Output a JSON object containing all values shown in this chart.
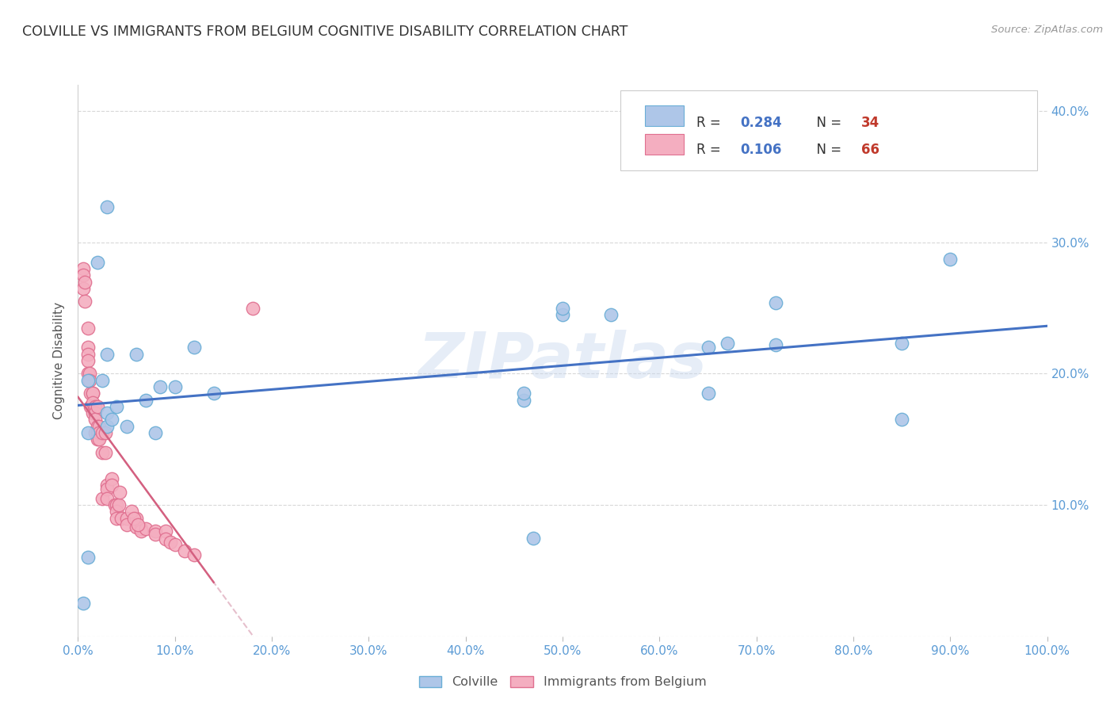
{
  "title": "COLVILLE VS IMMIGRANTS FROM BELGIUM COGNITIVE DISABILITY CORRELATION CHART",
  "source": "Source: ZipAtlas.com",
  "ylabel": "Cognitive Disability",
  "xlim": [
    0,
    1.0
  ],
  "ylim": [
    0,
    0.42
  ],
  "xticks": [
    0.0,
    0.1,
    0.2,
    0.3,
    0.4,
    0.5,
    0.6,
    0.7,
    0.8,
    0.9,
    1.0
  ],
  "xticklabels": [
    "0.0%",
    "10.0%",
    "20.0%",
    "30.0%",
    "40.0%",
    "50.0%",
    "60.0%",
    "70.0%",
    "80.0%",
    "90.0%",
    "100.0%"
  ],
  "yticks": [
    0.0,
    0.1,
    0.2,
    0.3,
    0.4
  ],
  "yticklabels_right": [
    "",
    "10.0%",
    "20.0%",
    "30.0%",
    "40.0%"
  ],
  "colville_color": "#aec6e8",
  "colville_edge": "#6aaed6",
  "belgium_color": "#f4aec0",
  "belgium_edge": "#e07090",
  "colville_R": 0.284,
  "colville_N": 34,
  "belgium_R": 0.106,
  "belgium_N": 66,
  "colville_line_color": "#4472c4",
  "belgium_line_color": "#d46080",
  "belgium_dashed_color": "#e0b0c0",
  "watermark": "ZIPatlas",
  "colville_x": [
    0.005,
    0.02,
    0.025,
    0.03,
    0.03,
    0.03,
    0.03,
    0.035,
    0.04,
    0.05,
    0.06,
    0.07,
    0.085,
    0.1,
    0.12,
    0.14,
    0.46,
    0.47,
    0.5,
    0.5,
    0.55,
    0.65,
    0.65,
    0.67,
    0.72,
    0.72,
    0.85,
    0.85,
    0.9,
    0.01,
    0.01,
    0.01,
    0.08,
    0.46
  ],
  "colville_y": [
    0.025,
    0.285,
    0.195,
    0.215,
    0.17,
    0.16,
    0.327,
    0.165,
    0.175,
    0.16,
    0.215,
    0.18,
    0.19,
    0.19,
    0.22,
    0.185,
    0.18,
    0.075,
    0.245,
    0.25,
    0.245,
    0.185,
    0.22,
    0.223,
    0.222,
    0.254,
    0.165,
    0.223,
    0.287,
    0.195,
    0.155,
    0.06,
    0.155,
    0.185
  ],
  "belgium_x": [
    0.005,
    0.005,
    0.005,
    0.007,
    0.007,
    0.01,
    0.01,
    0.01,
    0.01,
    0.01,
    0.012,
    0.012,
    0.013,
    0.013,
    0.015,
    0.015,
    0.015,
    0.015,
    0.018,
    0.018,
    0.018,
    0.018,
    0.02,
    0.02,
    0.02,
    0.02,
    0.02,
    0.022,
    0.022,
    0.022,
    0.025,
    0.025,
    0.025,
    0.028,
    0.028,
    0.03,
    0.03,
    0.03,
    0.035,
    0.035,
    0.038,
    0.04,
    0.04,
    0.04,
    0.042,
    0.043,
    0.045,
    0.05,
    0.05,
    0.06,
    0.06,
    0.065,
    0.065,
    0.07,
    0.08,
    0.08,
    0.09,
    0.09,
    0.095,
    0.1,
    0.11,
    0.12,
    0.18,
    0.055,
    0.058,
    0.062
  ],
  "belgium_y": [
    0.28,
    0.275,
    0.265,
    0.27,
    0.255,
    0.235,
    0.22,
    0.215,
    0.21,
    0.2,
    0.2,
    0.195,
    0.185,
    0.175,
    0.185,
    0.185,
    0.178,
    0.17,
    0.175,
    0.17,
    0.165,
    0.155,
    0.175,
    0.16,
    0.155,
    0.155,
    0.15,
    0.16,
    0.155,
    0.15,
    0.155,
    0.14,
    0.105,
    0.155,
    0.14,
    0.115,
    0.112,
    0.105,
    0.12,
    0.115,
    0.1,
    0.1,
    0.095,
    0.09,
    0.1,
    0.11,
    0.09,
    0.09,
    0.085,
    0.09,
    0.083,
    0.082,
    0.08,
    0.082,
    0.08,
    0.078,
    0.08,
    0.074,
    0.072,
    0.07,
    0.065,
    0.062,
    0.25,
    0.095,
    0.09,
    0.085
  ]
}
